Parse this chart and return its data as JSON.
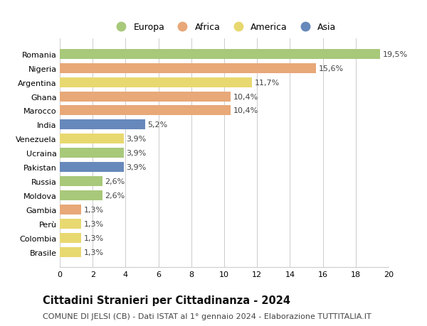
{
  "countries": [
    "Romania",
    "Nigeria",
    "Argentina",
    "Ghana",
    "Marocco",
    "India",
    "Venezuela",
    "Ucraina",
    "Pakistan",
    "Russia",
    "Moldova",
    "Gambia",
    "Perù",
    "Colombia",
    "Brasile"
  ],
  "values": [
    19.5,
    15.6,
    11.7,
    10.4,
    10.4,
    5.2,
    3.9,
    3.9,
    3.9,
    2.6,
    2.6,
    1.3,
    1.3,
    1.3,
    1.3
  ],
  "labels": [
    "19,5%",
    "15,6%",
    "11,7%",
    "10,4%",
    "10,4%",
    "5,2%",
    "3,9%",
    "3,9%",
    "3,9%",
    "2,6%",
    "2,6%",
    "1,3%",
    "1,3%",
    "1,3%",
    "1,3%"
  ],
  "continents": [
    "Europa",
    "Africa",
    "America",
    "Africa",
    "Africa",
    "Asia",
    "America",
    "Europa",
    "Asia",
    "Europa",
    "Europa",
    "Africa",
    "America",
    "America",
    "America"
  ],
  "colors": {
    "Europa": "#a8c87a",
    "Africa": "#e8a878",
    "America": "#e8d870",
    "Asia": "#6688bb"
  },
  "title": "Cittadini Stranieri per Cittadinanza - 2024",
  "subtitle": "COMUNE DI JELSI (CB) - Dati ISTAT al 1° gennaio 2024 - Elaborazione TUTTITALIA.IT",
  "xlim": [
    0,
    20
  ],
  "xticks": [
    0,
    2,
    4,
    6,
    8,
    10,
    12,
    14,
    16,
    18,
    20
  ],
  "background_color": "#ffffff",
  "grid_color": "#cccccc",
  "bar_height": 0.7,
  "label_fontsize": 8,
  "tick_fontsize": 8,
  "title_fontsize": 10.5,
  "subtitle_fontsize": 8
}
